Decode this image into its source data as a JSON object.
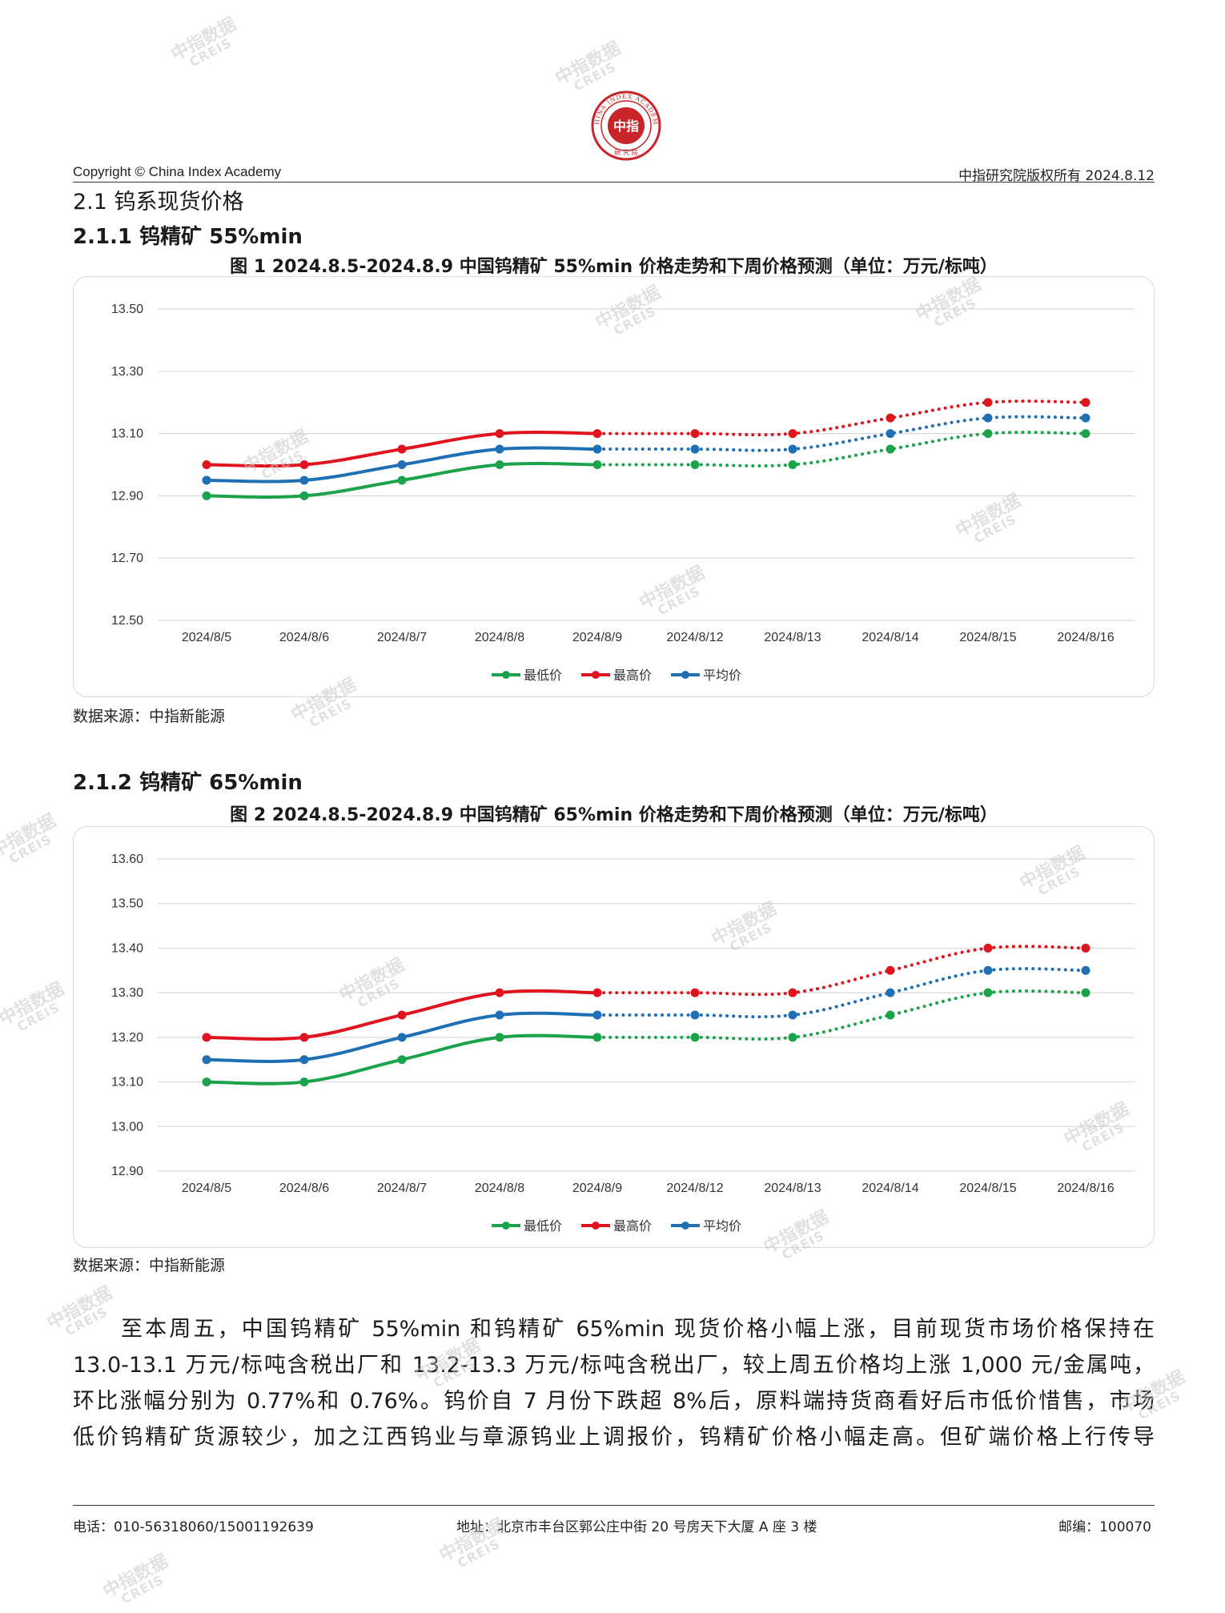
{
  "header": {
    "logo_text": "CHINA INDEX ACADEMY",
    "logo_center": "中指",
    "logo_bottom": "研究院",
    "copyright": "Copyright © China Index Academy",
    "rights": "中指研究院版权所有 2024.8.12"
  },
  "section": {
    "title": "2.1 钨系现货价格",
    "sub1": "2.1.1 钨精矿 55%min",
    "sub2": "2.1.2 钨精矿 65%min"
  },
  "figures": {
    "fig1_title": "图 1 2024.8.5-2024.8.9 中国钨精矿 55%min 价格走势和下周价格预测（单位：万元/标吨）",
    "fig2_title": "图 2 2024.8.5-2024.8.9 中国钨精矿 65%min 价格走势和下周价格预测（单位：万元/标吨）",
    "source1": "数据来源：中指新能源",
    "source2": "数据来源：中指新能源"
  },
  "chart_data": [
    {
      "type": "line",
      "categories": [
        "2024/8/5",
        "2024/8/6",
        "2024/8/7",
        "2024/8/8",
        "2024/8/9",
        "2024/8/12",
        "2024/8/13",
        "2024/8/14",
        "2024/8/15",
        "2024/8/16"
      ],
      "actual_count": 5,
      "ylim": [
        12.5,
        13.5
      ],
      "yticks": [
        "12.50",
        "12.70",
        "12.90",
        "13.10",
        "13.30",
        "13.50"
      ],
      "grid": true,
      "legend_position": "bottom",
      "series": [
        {
          "name": "最低价",
          "color": "#1aa34a",
          "values": [
            12.9,
            12.9,
            12.95,
            13.0,
            13.0,
            13.0,
            13.0,
            13.05,
            13.1,
            13.1
          ]
        },
        {
          "name": "最高价",
          "color": "#e0141e",
          "values": [
            13.0,
            13.0,
            13.05,
            13.1,
            13.1,
            13.1,
            13.1,
            13.15,
            13.2,
            13.2
          ]
        },
        {
          "name": "平均价",
          "color": "#1f6fb5",
          "values": [
            12.95,
            12.95,
            13.0,
            13.05,
            13.05,
            13.05,
            13.05,
            13.1,
            13.15,
            13.15
          ]
        }
      ]
    },
    {
      "type": "line",
      "categories": [
        "2024/8/5",
        "2024/8/6",
        "2024/8/7",
        "2024/8/8",
        "2024/8/9",
        "2024/8/12",
        "2024/8/13",
        "2024/8/14",
        "2024/8/15",
        "2024/8/16"
      ],
      "actual_count": 5,
      "ylim": [
        12.9,
        13.6
      ],
      "yticks": [
        "12.90",
        "13.00",
        "13.10",
        "13.20",
        "13.30",
        "13.40",
        "13.50",
        "13.60"
      ],
      "grid": true,
      "legend_position": "bottom",
      "series": [
        {
          "name": "最低价",
          "color": "#1aa34a",
          "values": [
            13.1,
            13.1,
            13.15,
            13.2,
            13.2,
            13.2,
            13.2,
            13.25,
            13.3,
            13.3
          ]
        },
        {
          "name": "最高价",
          "color": "#e0141e",
          "values": [
            13.2,
            13.2,
            13.25,
            13.3,
            13.3,
            13.3,
            13.3,
            13.35,
            13.4,
            13.4
          ]
        },
        {
          "name": "平均价",
          "color": "#1f6fb5",
          "values": [
            13.15,
            13.15,
            13.2,
            13.25,
            13.25,
            13.25,
            13.25,
            13.3,
            13.35,
            13.35
          ]
        }
      ]
    }
  ],
  "paragraph": {
    "line1": "至本周五，中国钨精矿 55%min 和钨精矿 65%min 现货价格小幅上涨，目前现货市场价格保持在",
    "line2": "13.0-13.1 万元/标吨含税出厂和 13.2-13.3 万元/标吨含税出厂，较上周五价格均上涨 1,000 元/金属吨，",
    "line3": "环比涨幅分别为 0.77%和 0.76%。钨价自 7 月份下跌超 8%后，原料端持货商看好后市低价惜售，市场",
    "line4": "低价钨精矿货源较少，加之江西钨业与章源钨业上调报价，钨精矿价格小幅走高。但矿端价格上行传导"
  },
  "footer": {
    "phone": "电话：010-56318060/15001192639",
    "address": "地址：北京市丰台区郭公庄中街 20 号房天下大厦 A 座 3 楼",
    "postcode": "邮编：100070"
  },
  "watermark": {
    "cn": "中指数据",
    "en": "CREIS"
  }
}
